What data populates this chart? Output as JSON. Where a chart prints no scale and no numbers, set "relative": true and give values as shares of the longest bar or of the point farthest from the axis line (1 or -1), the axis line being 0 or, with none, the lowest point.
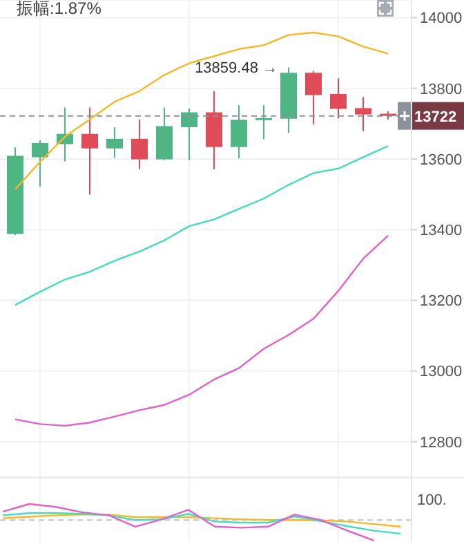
{
  "chart_data": [
    {
      "type": "candlestick",
      "annotations": [
        "振幅:1.87%",
        "13859.48 →"
      ],
      "categories": [
        null,
        null,
        null,
        null,
        null,
        null,
        null,
        null,
        null,
        null,
        null,
        null,
        null,
        null,
        null,
        null
      ],
      "ohlc": [
        [
          13388,
          13633,
          13385,
          13609
        ],
        [
          13605,
          13653,
          13522,
          13645
        ],
        [
          13642,
          13746,
          13593,
          13671
        ],
        [
          13671,
          13746,
          13499,
          13630
        ],
        [
          13630,
          13690,
          13604,
          13657
        ],
        [
          13657,
          13712,
          13571,
          13599
        ],
        [
          13599,
          13746,
          13596,
          13693
        ],
        [
          13690,
          13743,
          13597,
          13732
        ],
        [
          13732,
          13792,
          13571,
          13634
        ],
        [
          13634,
          13752,
          13602,
          13711
        ],
        [
          13710,
          13752,
          13656,
          13716
        ],
        [
          13714,
          13859.48,
          13674,
          13844
        ],
        [
          13844,
          13849,
          13698,
          13781
        ],
        [
          13784,
          13828,
          13715,
          13742
        ],
        [
          13744,
          13775,
          13679,
          13726
        ],
        [
          13728,
          13735,
          13712,
          13722
        ]
      ],
      "colors": [
        "#4fb584",
        "#4fb584",
        "#4fb584",
        "#e04b5a",
        "#4fb584",
        "#e04b5a",
        "#4fb584",
        "#4fb584",
        "#e04b5a",
        "#4fb584",
        "#4fb584",
        "#4fb584",
        "#e04b5a",
        "#e04b5a",
        "#e04b5a",
        "#e04b5a"
      ],
      "series": [
        {
          "type": "line",
          "color": "#f6b826",
          "values": [
            13514,
            13592,
            13663,
            13712,
            13762,
            13792,
            13838,
            13871,
            13891,
            13911,
            13922,
            13951,
            13958,
            13947,
            13918,
            13898
          ]
        },
        {
          "type": "line",
          "color": "#45dbc0",
          "values": [
            13187,
            13224,
            13259,
            13281,
            13312,
            13338,
            13370,
            13410,
            13429,
            13459,
            13488,
            13527,
            13560,
            13573,
            13605,
            13637
          ]
        },
        {
          "type": "line",
          "color": "#e35fcb",
          "values": [
            12863,
            12850,
            12845,
            12854,
            12871,
            12889,
            12904,
            12933,
            12976,
            13008,
            13063,
            13102,
            13148,
            13227,
            13318,
            13383
          ]
        }
      ],
      "ylim": [
        12700,
        14050
      ],
      "yticks": [
        12800,
        13000,
        13200,
        13400,
        13600,
        13800,
        14000
      ],
      "grid": true,
      "ref_lines": [
        {
          "axis": "y",
          "value": 13722,
          "label": "13722",
          "line_style": "dashed",
          "color": "#8a93a0"
        }
      ]
    },
    {
      "type": "line",
      "relative": true,
      "annotations": [
        "100."
      ],
      "categories": [
        null,
        null,
        null,
        null,
        null,
        null,
        null,
        null,
        null,
        null,
        null,
        null,
        null,
        null,
        null,
        null
      ],
      "series": [
        {
          "color": "#f6b826",
          "values": [
            0.61,
            0.65,
            0.69,
            0.71,
            0.71,
            0.64,
            0.64,
            0.64,
            0.61,
            0.58,
            0.56,
            0.56,
            0.55,
            0.52,
            0.45,
            0.38
          ]
        },
        {
          "color": "#45dbc0",
          "values": [
            0.69,
            0.75,
            0.75,
            0.73,
            0.69,
            0.56,
            0.58,
            0.73,
            0.52,
            0.49,
            0.49,
            0.66,
            0.53,
            0.39,
            0.27,
            0.19
          ]
        },
        {
          "color": "#e35fcb",
          "values": [
            0.79,
            1,
            0.92,
            0.77,
            0.69,
            0.38,
            0.58,
            0.84,
            0.38,
            0.35,
            0.38,
            0.71,
            0.56,
            0.27,
            0,
            null
          ]
        }
      ],
      "grid": "x",
      "ref_lines": [
        {
          "axis": "y",
          "value": 0.56,
          "line_style": "dashed",
          "color": "#c0c4cc"
        }
      ]
    }
  ]
}
